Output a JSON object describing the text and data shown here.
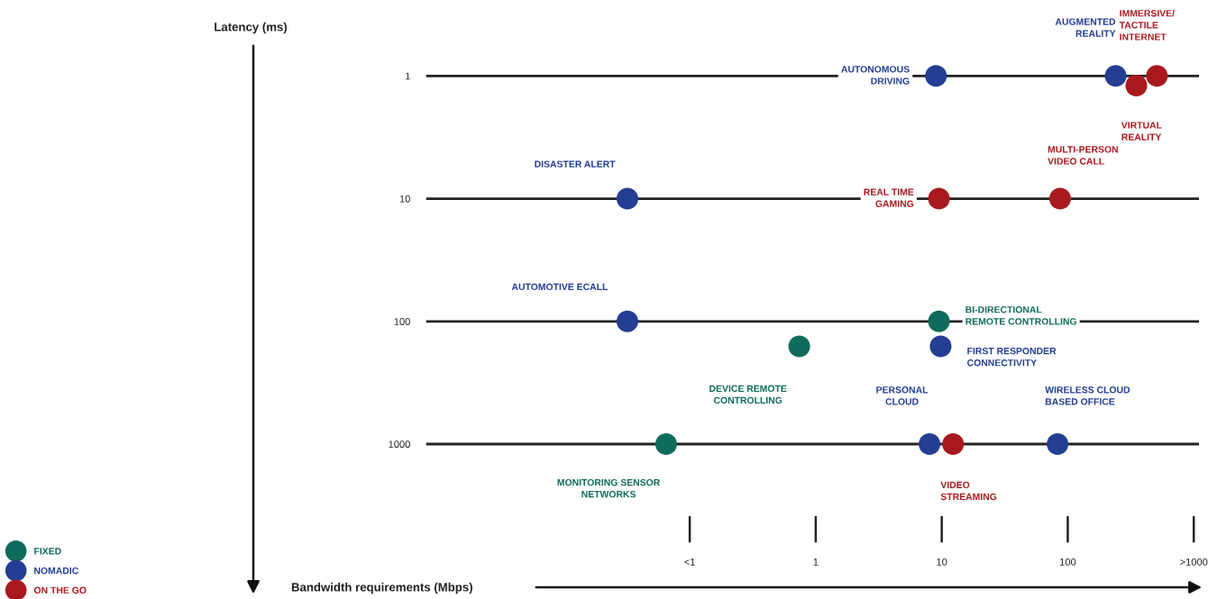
{
  "chart_data": {
    "type": "scatter",
    "xlabel": "Bandwidth requirements (Mbps)",
    "log": "xy",
    "xlim": [
      0.0008,
      1100
    ],
    "ylim": [
      3800,
      0.56
    ],
    "xticks": [
      {
        "value": 0.1,
        "label": "<1"
      },
      {
        "value": 1,
        "label": "1"
      },
      {
        "value": 10,
        "label": "10"
      },
      {
        "value": 100,
        "label": "100"
      },
      {
        "value": 1000,
        "label": ">1000"
      }
    ],
    "yticks": [
      {
        "value": 1,
        "label": "1"
      },
      {
        "value": 10,
        "label": "10"
      },
      {
        "value": 100,
        "label": "100"
      },
      {
        "value": 1000,
        "label": "1000"
      }
    ],
    "grid": "y",
    "legend": "bottom left",
    "marker": "circle",
    "series": [
      {
        "name": "FIXED",
        "color": "#0f6b5b",
        "x": [
          9.5,
          0.74,
          0.065
        ],
        "values": [
          100,
          160,
          1000
        ],
        "value_labels": [
          "BI-DIRECTIONAL\nREMOTE CONTROLLING",
          "DEVICE REMOTE\nCONTROLLING",
          "MONITORING SENSOR\nNETWORKS"
        ]
      },
      {
        "name": "NOMADIC",
        "color": "#233e92",
        "x": [
          9,
          240,
          0.032,
          0.032,
          9.8,
          8,
          83
        ],
        "values": [
          1,
          1,
          10,
          100,
          160,
          1000,
          1000
        ],
        "value_labels": [
          "AUTONOMOUS\nDRIVING",
          "AUGMENTED\nREALITY",
          "DISASTER ALERT",
          "AUTOMOTIVE ECALL",
          "FIRST RESPONDER\nCONNECTIVITY",
          "PERSONAL\nCLOUD",
          "WIRELESS CLOUD\nBASED OFFICE"
        ]
      },
      {
        "name": "ON THE GO",
        "color": "#a8191e",
        "x": [
          510,
          350,
          9.5,
          87,
          12.3
        ],
        "values": [
          1,
          1.2,
          10,
          10,
          1000
        ],
        "value_labels": [
          "IMMERSIVE/\nTACTILE\nINTERNET",
          "VIRTUAL\nREALITY",
          "REAL TIME\nGAMING",
          "MULTI-PERSON\nVIDEO CALL",
          "VIDEO\nSTREAMING"
        ]
      }
    ],
    "annotations": [
      "Latency (ms)"
    ]
  }
}
